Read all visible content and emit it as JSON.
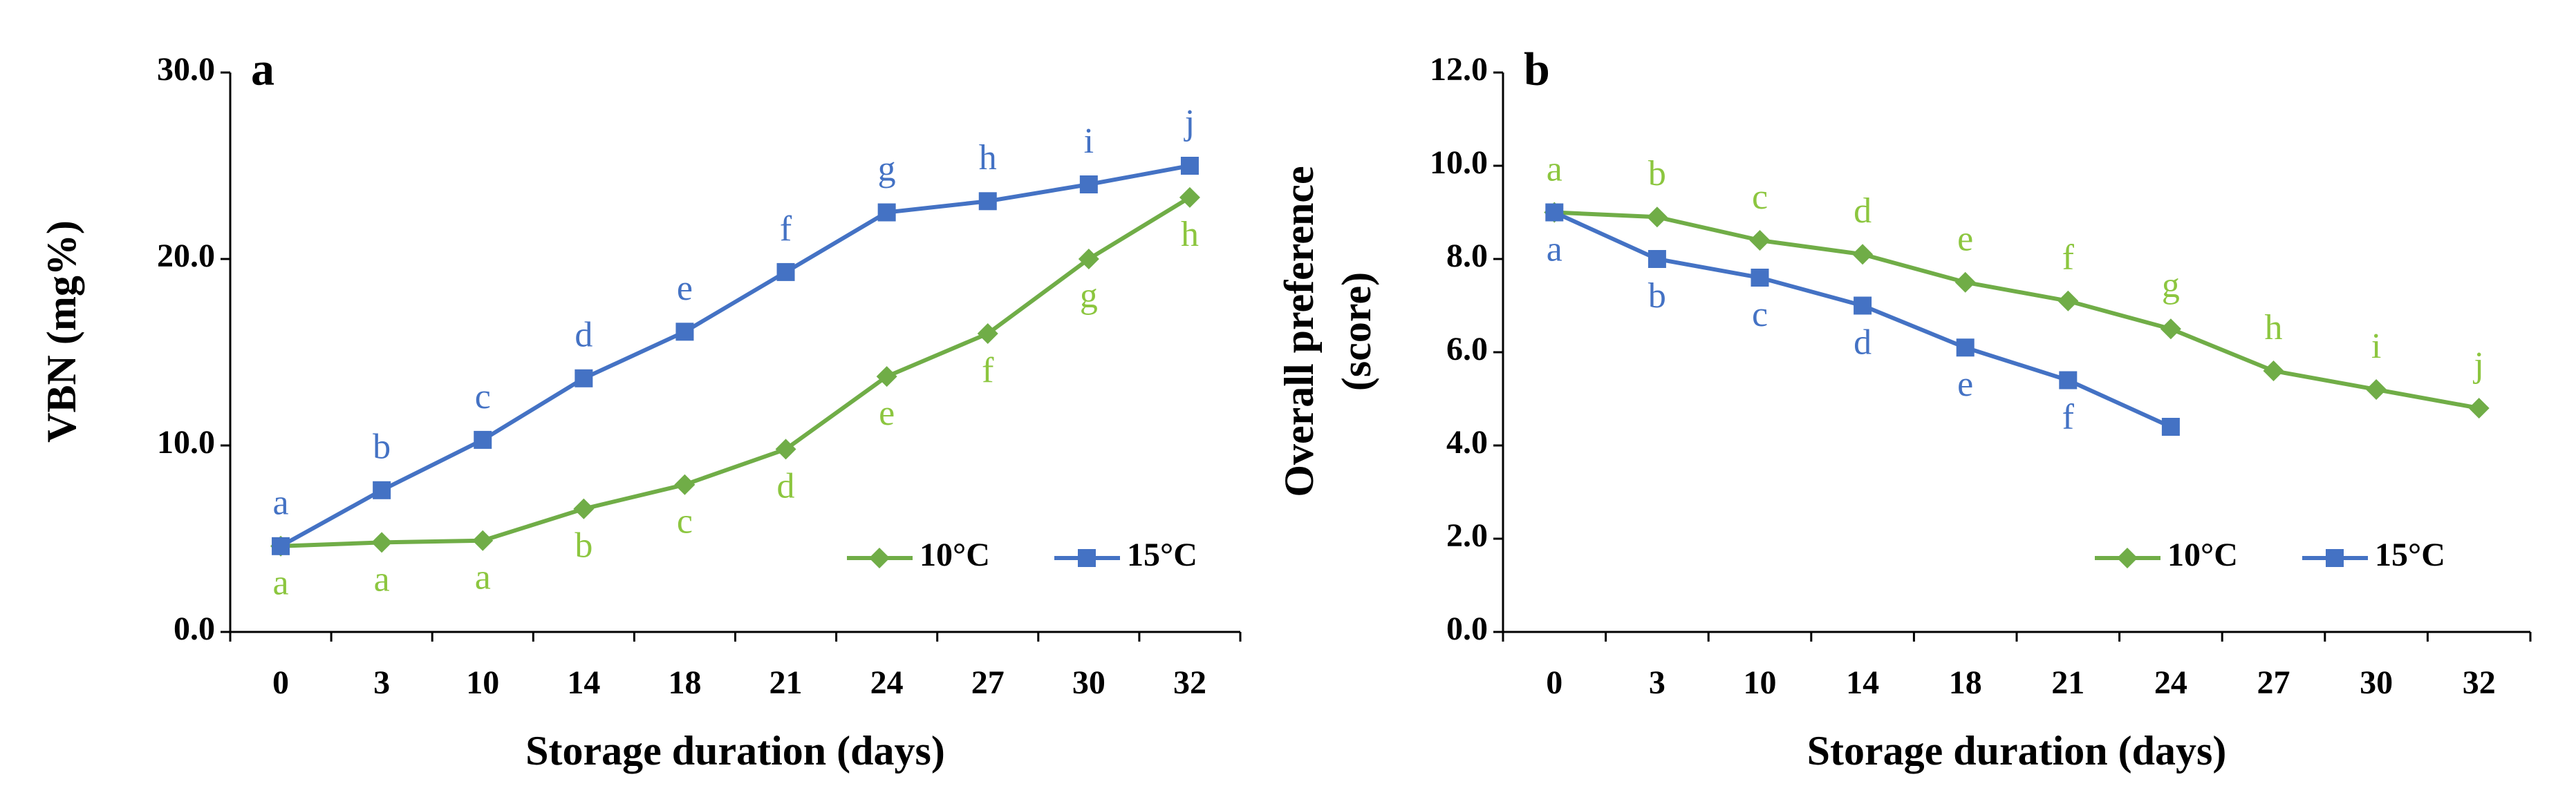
{
  "chart_data": [
    {
      "type": "line",
      "panel_label": "a",
      "x_label": "Storage duration (days)",
      "y_label": [
        "VBN (mg%)"
      ],
      "categories": [
        "0",
        "3",
        "10",
        "14",
        "18",
        "21",
        "24",
        "27",
        "30",
        "32"
      ],
      "ylim": [
        0,
        30
      ],
      "yticks": [
        {
          "value": 0,
          "label": "0.0"
        },
        {
          "value": 10,
          "label": "10.0"
        },
        {
          "value": 20,
          "label": "20.0"
        },
        {
          "value": 30,
          "label": "30.0"
        }
      ],
      "legend": "lower right",
      "series": [
        {
          "name": "10°C",
          "color": "#70ad47",
          "label_color": "#8cc63f",
          "marker": "diamond",
          "label_position": "below",
          "values": [
            4.6,
            4.8,
            4.9,
            6.6,
            7.9,
            9.8,
            13.7,
            16.0,
            20.0,
            23.3
          ],
          "letters": [
            "a",
            "a",
            "a",
            "b",
            "c",
            "d",
            "e",
            "f",
            "g",
            "h"
          ]
        },
        {
          "name": "15°C",
          "color": "#4472c4",
          "label_color": "#4472c4",
          "marker": "square",
          "label_position": "above",
          "values": [
            4.6,
            7.6,
            10.3,
            13.6,
            16.1,
            19.3,
            22.5,
            23.1,
            24.0,
            25.0
          ],
          "letters": [
            "a",
            "b",
            "c",
            "d",
            "e",
            "f",
            "g",
            "h",
            "i",
            "j"
          ]
        }
      ]
    },
    {
      "type": "line",
      "panel_label": "b",
      "x_label": "Storage duration (days)",
      "y_label": [
        "Overall preference",
        "(score)"
      ],
      "categories": [
        "0",
        "3",
        "10",
        "14",
        "18",
        "21",
        "24",
        "27",
        "30",
        "32"
      ],
      "ylim": [
        0,
        12
      ],
      "yticks": [
        {
          "value": 0,
          "label": "0.0"
        },
        {
          "value": 2,
          "label": "2.0"
        },
        {
          "value": 4,
          "label": "4.0"
        },
        {
          "value": 6,
          "label": "6.0"
        },
        {
          "value": 8,
          "label": "8.0"
        },
        {
          "value": 10,
          "label": "10.0"
        },
        {
          "value": 12,
          "label": "12.0"
        }
      ],
      "legend": "lower right",
      "series": [
        {
          "name": "10°C",
          "color": "#70ad47",
          "label_color": "#8cc63f",
          "marker": "diamond",
          "label_position": "above",
          "values": [
            9.0,
            8.9,
            8.4,
            8.1,
            7.5,
            7.1,
            6.5,
            5.6,
            5.2,
            4.8
          ],
          "letters": [
            "a",
            "b",
            "c",
            "d",
            "e",
            "f",
            "g",
            "h",
            "i",
            "j"
          ]
        },
        {
          "name": "15°C",
          "color": "#4472c4",
          "label_color": "#4472c4",
          "marker": "square",
          "label_position": "below",
          "values": [
            9.0,
            8.0,
            7.6,
            7.0,
            6.1,
            5.4,
            4.4,
            null,
            null,
            null
          ],
          "letters": [
            "a",
            "b",
            "c",
            "d",
            "e",
            "f",
            null,
            null,
            null,
            null
          ]
        }
      ]
    }
  ]
}
